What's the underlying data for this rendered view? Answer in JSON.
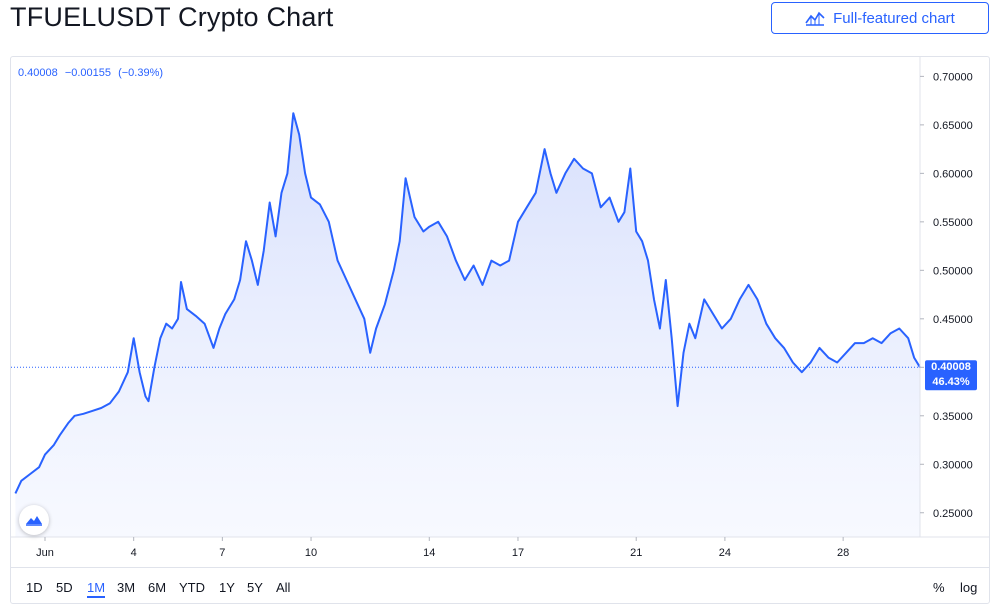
{
  "header": {
    "title": "TFUELUSDT Crypto Chart",
    "full_chart_label": "Full-featured chart"
  },
  "legend": {
    "price": "0.40008",
    "change": "−0.00155",
    "change_pct": "(−0.39%)"
  },
  "price_label": {
    "price": "0.40008",
    "pct": "46.43%"
  },
  "ranges": [
    "1D",
    "5D",
    "1M",
    "3M",
    "6M",
    "YTD",
    "1Y",
    "5Y",
    "All"
  ],
  "active_range": "1M",
  "scale_buttons": {
    "percent": "%",
    "log": "log"
  },
  "colors": {
    "line": "#2962ff",
    "area_top": "#d5defc",
    "label_bg": "#2962ff"
  },
  "chart_data": {
    "type": "area",
    "y_axis": {
      "side": "right",
      "range": [
        0.225,
        0.72
      ],
      "ticks": [
        0.25,
        0.3,
        0.35,
        0.4,
        0.45,
        0.5,
        0.55,
        0.6,
        0.65,
        0.7
      ],
      "tick_labels": [
        "0.25000",
        "0.30000",
        "0.35000",
        "0.40000",
        "0.45000",
        "0.50000",
        "0.55000",
        "0.60000",
        "0.65000",
        "0.70000"
      ]
    },
    "x_axis": {
      "range": [
        -0.15,
        30.6
      ],
      "ticks": [
        1,
        4,
        7,
        10,
        14,
        17,
        21,
        24,
        28
      ],
      "tick_labels": [
        "Jun",
        "4",
        "7",
        "10",
        "14",
        "17",
        "21",
        "24",
        "28"
      ]
    },
    "grid": false,
    "last_price_line": 0.40008,
    "series": [
      {
        "x": [
          0,
          0.2,
          0.5,
          0.8,
          1.0,
          1.3,
          1.5,
          1.8,
          2.0,
          2.3,
          2.6,
          2.9,
          3.2,
          3.5,
          3.8,
          4.0,
          4.2,
          4.4,
          4.5,
          4.7,
          4.9,
          5.1,
          5.3,
          5.5,
          5.6,
          5.8,
          6.1,
          6.4,
          6.7,
          6.9,
          7.1,
          7.4,
          7.6,
          7.8,
          8.0,
          8.2,
          8.4,
          8.6,
          8.8,
          9.0,
          9.2,
          9.4,
          9.6,
          9.8,
          10.0,
          10.3,
          10.6,
          10.9,
          11.2,
          11.5,
          11.8,
          12.0,
          12.2,
          12.5,
          12.8,
          13.0,
          13.2,
          13.5,
          13.8,
          14.0,
          14.3,
          14.6,
          14.9,
          15.2,
          15.5,
          15.8,
          16.1,
          16.4,
          16.7,
          17.0,
          17.3,
          17.6,
          17.9,
          18.1,
          18.3,
          18.6,
          18.9,
          19.2,
          19.5,
          19.8,
          20.1,
          20.4,
          20.6,
          20.8,
          21.0,
          21.2,
          21.4,
          21.6,
          21.8,
          22.0,
          22.2,
          22.4,
          22.6,
          22.8,
          23.0,
          23.3,
          23.6,
          23.9,
          24.2,
          24.5,
          24.8,
          25.1,
          25.4,
          25.7,
          26.0,
          26.3,
          26.6,
          26.9,
          27.2,
          27.5,
          27.8,
          28.1,
          28.4,
          28.7,
          29.0,
          29.3,
          29.6,
          29.9,
          30.2,
          30.4,
          30.6
        ],
        "values": [
          0.27,
          0.283,
          0.29,
          0.297,
          0.31,
          0.32,
          0.33,
          0.343,
          0.35,
          0.352,
          0.355,
          0.358,
          0.363,
          0.375,
          0.395,
          0.43,
          0.395,
          0.37,
          0.365,
          0.4,
          0.43,
          0.445,
          0.44,
          0.45,
          0.488,
          0.46,
          0.453,
          0.445,
          0.42,
          0.44,
          0.455,
          0.47,
          0.49,
          0.53,
          0.51,
          0.485,
          0.52,
          0.57,
          0.535,
          0.58,
          0.6,
          0.662,
          0.64,
          0.6,
          0.575,
          0.568,
          0.55,
          0.51,
          0.49,
          0.47,
          0.45,
          0.415,
          0.44,
          0.465,
          0.5,
          0.53,
          0.595,
          0.555,
          0.54,
          0.545,
          0.55,
          0.535,
          0.51,
          0.49,
          0.505,
          0.485,
          0.51,
          0.505,
          0.51,
          0.55,
          0.565,
          0.58,
          0.625,
          0.6,
          0.58,
          0.6,
          0.615,
          0.605,
          0.6,
          0.565,
          0.575,
          0.55,
          0.56,
          0.605,
          0.54,
          0.53,
          0.51,
          0.47,
          0.44,
          0.49,
          0.43,
          0.36,
          0.415,
          0.445,
          0.43,
          0.47,
          0.455,
          0.44,
          0.45,
          0.47,
          0.485,
          0.47,
          0.445,
          0.43,
          0.42,
          0.405,
          0.395,
          0.405,
          0.42,
          0.41,
          0.405,
          0.415,
          0.425,
          0.425,
          0.43,
          0.425,
          0.435,
          0.44,
          0.43,
          0.41,
          0.4
        ]
      }
    ]
  }
}
